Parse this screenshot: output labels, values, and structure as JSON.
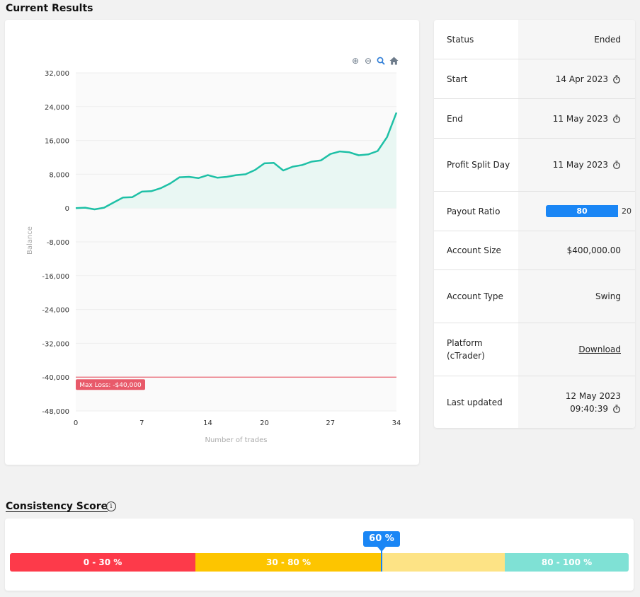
{
  "results": {
    "title": "Current Results"
  },
  "chart_data": {
    "type": "area",
    "xlabel": "Number of trades",
    "ylabel": "Balance",
    "xlim": [
      0,
      34
    ],
    "ylim": [
      -48000,
      32000
    ],
    "x_ticks": [
      "0",
      "7",
      "14",
      "20",
      "27",
      "34"
    ],
    "x_tick_values": [
      0,
      7,
      14,
      20,
      27,
      34
    ],
    "y_ticks": [
      "32,000",
      "24,000",
      "16,000",
      "8,000",
      "0",
      "-8,000",
      "-16,000",
      "-24,000",
      "-32,000",
      "-40,000",
      "-48,000"
    ],
    "y_tick_values": [
      32000,
      24000,
      16000,
      8000,
      0,
      -8000,
      -16000,
      -24000,
      -32000,
      -40000,
      -48000
    ],
    "grid": true,
    "line_color": "#1ec0a6",
    "fill_color": "#e9f7f3",
    "series": [
      {
        "x": [
          0,
          1,
          2,
          3,
          4,
          5,
          6,
          7,
          8,
          9,
          10,
          11,
          12,
          13,
          14,
          15,
          16,
          17,
          18,
          19,
          20,
          21,
          22,
          23,
          24,
          25,
          26,
          27,
          28,
          29,
          30,
          31,
          32,
          33,
          34
        ],
        "values": [
          0,
          100,
          -300,
          100,
          1300,
          2500,
          2600,
          3900,
          4000,
          4700,
          5800,
          7300,
          7400,
          7100,
          7800,
          7200,
          7400,
          7800,
          8000,
          9000,
          10600,
          10700,
          8900,
          9800,
          10200,
          11000,
          11300,
          12800,
          13400,
          13200,
          12500,
          12700,
          13500,
          16800,
          22600
        ]
      }
    ],
    "threshold": {
      "value": -40000,
      "label": "Max Loss: -$40,000",
      "color": "#e85a6a"
    }
  },
  "toolbar": {
    "icons": [
      "zoom-in-icon",
      "zoom-out-icon",
      "zoom-select-icon",
      "home-icon"
    ]
  },
  "info": {
    "status_label": "Status",
    "status_value": "Ended",
    "start_label": "Start",
    "start_value": "14 Apr 2023",
    "end_label": "End",
    "end_value": "11 May 2023",
    "profit_split_label": "Profit Split Day",
    "profit_split_value": "11 May 2023",
    "payout_label": "Payout Ratio",
    "payout_primary": "80",
    "payout_secondary": "20",
    "account_size_label": "Account Size",
    "account_size_value": "$400,000.00",
    "account_type_label": "Account Type",
    "account_type_value": "Swing",
    "platform_label": "Platform (cTrader)",
    "platform_value": "Download",
    "last_updated_label": "Last updated",
    "last_updated_date": "12 May 2023",
    "last_updated_time": "09:40:39"
  },
  "consistency": {
    "title": "Consistency Score",
    "score": "60 %",
    "score_value": 60,
    "segments": [
      {
        "label": "0 - 30 %",
        "color": "#fd3a4a"
      },
      {
        "label": "30 - 80 %",
        "color": "#fdc500"
      },
      {
        "label": "",
        "color": "#fde385"
      },
      {
        "label": "80 - 100 %",
        "color": "#7fe1d5"
      }
    ]
  }
}
